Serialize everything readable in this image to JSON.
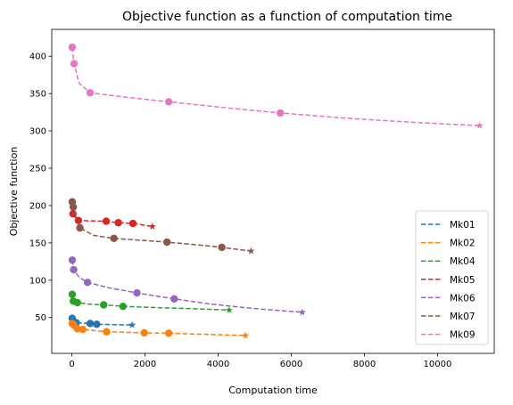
{
  "chart_data": {
    "type": "line",
    "title": "Objective function as a function of computation time",
    "xlabel": "Computation time",
    "ylabel": "Objective function",
    "xlim": [
      -550,
      11550
    ],
    "ylim": [
      2,
      436
    ],
    "xticks": [
      0,
      2000,
      4000,
      6000,
      8000,
      10000
    ],
    "yticks": [
      50,
      100,
      150,
      200,
      250,
      300,
      350,
      400
    ],
    "grid": false,
    "legend_position": "lower-right",
    "series": [
      {
        "name": "Mk01",
        "color": "#1f77b4",
        "points": [
          [
            10,
            49
          ],
          [
            40,
            45
          ],
          [
            120,
            43
          ],
          [
            500,
            42
          ],
          [
            680,
            41
          ]
        ],
        "final": [
          1650,
          40
        ],
        "curve": [
          [
            10,
            49
          ],
          [
            40,
            45
          ],
          [
            120,
            43
          ],
          [
            300,
            42.5
          ],
          [
            500,
            42
          ],
          [
            680,
            41
          ],
          [
            1000,
            40.7
          ],
          [
            1300,
            40.3
          ],
          [
            1650,
            40
          ]
        ]
      },
      {
        "name": "Mk02",
        "color": "#ff7f0e",
        "points": [
          [
            10,
            42
          ],
          [
            50,
            40
          ],
          [
            150,
            35
          ],
          [
            300,
            34
          ],
          [
            950,
            31
          ],
          [
            1980,
            29.5
          ],
          [
            2650,
            29
          ]
        ],
        "final": [
          4750,
          26
        ],
        "curve": [
          [
            10,
            42
          ],
          [
            50,
            40
          ],
          [
            150,
            35
          ],
          [
            300,
            34
          ],
          [
            600,
            32.5
          ],
          [
            950,
            31
          ],
          [
            1500,
            30.2
          ],
          [
            1980,
            29.5
          ],
          [
            2650,
            29
          ],
          [
            3300,
            28
          ],
          [
            4000,
            27
          ],
          [
            4750,
            26
          ]
        ]
      },
      {
        "name": "Mk04",
        "color": "#2ca02c",
        "points": [
          [
            10,
            81
          ],
          [
            40,
            72
          ],
          [
            150,
            70
          ],
          [
            870,
            67
          ],
          [
            1400,
            65
          ]
        ],
        "final": [
          4300,
          60
        ],
        "curve": [
          [
            10,
            81
          ],
          [
            40,
            72
          ],
          [
            150,
            70
          ],
          [
            450,
            68
          ],
          [
            870,
            67
          ],
          [
            1400,
            65
          ],
          [
            2200,
            63.5
          ],
          [
            3200,
            62
          ],
          [
            4300,
            60
          ]
        ]
      },
      {
        "name": "Mk05",
        "color": "#d62728",
        "points": [
          [
            30,
            189
          ],
          [
            180,
            180
          ],
          [
            940,
            179
          ],
          [
            1270,
            177
          ],
          [
            1670,
            176
          ]
        ],
        "final": [
          2200,
          172
        ],
        "curve": [
          [
            30,
            189
          ],
          [
            100,
            183
          ],
          [
            180,
            180
          ],
          [
            500,
            179.5
          ],
          [
            940,
            179
          ],
          [
            1270,
            177
          ],
          [
            1670,
            176
          ],
          [
            2200,
            172
          ]
        ]
      },
      {
        "name": "Mk06",
        "color": "#9467bd",
        "points": [
          [
            10,
            127
          ],
          [
            50,
            114
          ],
          [
            430,
            97
          ],
          [
            1780,
            83
          ],
          [
            2800,
            75
          ]
        ],
        "final": [
          6300,
          57
        ],
        "curve": [
          [
            10,
            127
          ],
          [
            50,
            114
          ],
          [
            200,
            104
          ],
          [
            430,
            97
          ],
          [
            1000,
            90
          ],
          [
            1780,
            83
          ],
          [
            2800,
            75
          ],
          [
            3800,
            68
          ],
          [
            5000,
            62
          ],
          [
            6300,
            57
          ]
        ]
      },
      {
        "name": "Mk07",
        "color": "#8c564b",
        "points": [
          [
            10,
            205
          ],
          [
            40,
            198
          ],
          [
            220,
            170
          ],
          [
            1150,
            156
          ],
          [
            2600,
            151
          ],
          [
            4100,
            144
          ]
        ],
        "final": [
          4900,
          139
        ],
        "curve": [
          [
            10,
            205
          ],
          [
            40,
            198
          ],
          [
            120,
            182
          ],
          [
            220,
            170
          ],
          [
            600,
            160
          ],
          [
            1150,
            156
          ],
          [
            1900,
            153.5
          ],
          [
            2600,
            151
          ],
          [
            3400,
            147.5
          ],
          [
            4100,
            144
          ],
          [
            4900,
            139
          ]
        ]
      },
      {
        "name": "Mk09",
        "color": "#e377c2",
        "points": [
          [
            10,
            412
          ],
          [
            60,
            390
          ],
          [
            500,
            351
          ],
          [
            2650,
            339
          ],
          [
            5700,
            324
          ]
        ],
        "final": [
          11150,
          307
        ],
        "curve": [
          [
            10,
            412
          ],
          [
            60,
            390
          ],
          [
            200,
            364
          ],
          [
            500,
            351
          ],
          [
            1500,
            345
          ],
          [
            2650,
            339
          ],
          [
            4200,
            331
          ],
          [
            5700,
            324
          ],
          [
            7500,
            317
          ],
          [
            9500,
            311
          ],
          [
            11150,
            307
          ]
        ]
      }
    ]
  }
}
